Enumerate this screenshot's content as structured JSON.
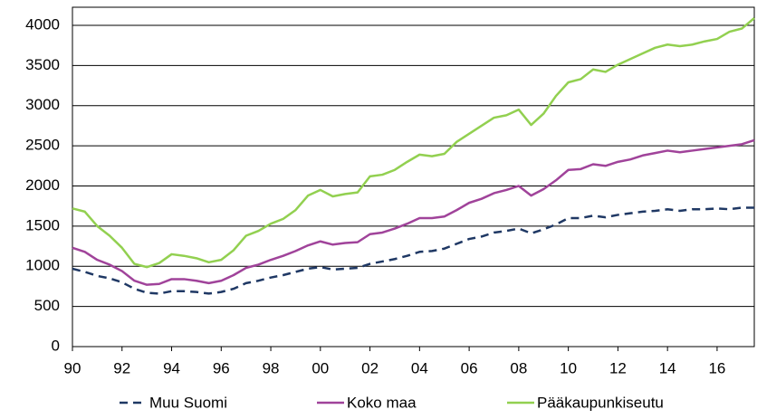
{
  "chart_data": {
    "type": "line",
    "x": [
      1990,
      1990.5,
      1991,
      1991.5,
      1992,
      1992.5,
      1993,
      1993.5,
      1994,
      1994.5,
      1995,
      1995.5,
      1996,
      1996.5,
      1997,
      1997.5,
      1998,
      1998.5,
      1999,
      1999.5,
      2000,
      2000.5,
      2001,
      2001.5,
      2002,
      2002.5,
      2003,
      2003.5,
      2004,
      2004.5,
      2005,
      2005.5,
      2006,
      2006.5,
      2007,
      2007.5,
      2008,
      2008.5,
      2009,
      2009.5,
      2010,
      2010.5,
      2011,
      2011.5,
      2012,
      2012.5,
      2013,
      2013.5,
      2014,
      2014.5,
      2015,
      2015.5,
      2016,
      2016.5,
      2017,
      2017.5
    ],
    "series": [
      {
        "name": "Muu Suomi",
        "color": "#1f3864",
        "line_style": "dashed",
        "values": [
          970,
          930,
          880,
          850,
          800,
          720,
          670,
          660,
          690,
          690,
          680,
          660,
          680,
          720,
          790,
          820,
          860,
          890,
          930,
          970,
          990,
          960,
          970,
          980,
          1030,
          1060,
          1090,
          1130,
          1180,
          1190,
          1220,
          1280,
          1340,
          1370,
          1420,
          1440,
          1470,
          1410,
          1460,
          1520,
          1600,
          1600,
          1630,
          1610,
          1640,
          1660,
          1680,
          1690,
          1710,
          1690,
          1710,
          1710,
          1720,
          1710,
          1730,
          1730
        ]
      },
      {
        "name": "Koko maa",
        "color": "#a0439a",
        "line_style": "solid",
        "values": [
          1230,
          1180,
          1080,
          1020,
          940,
          820,
          770,
          780,
          840,
          840,
          820,
          790,
          820,
          890,
          980,
          1020,
          1080,
          1130,
          1190,
          1260,
          1310,
          1270,
          1290,
          1300,
          1400,
          1420,
          1470,
          1530,
          1600,
          1600,
          1620,
          1700,
          1790,
          1840,
          1910,
          1950,
          2000,
          1880,
          1960,
          2070,
          2200,
          2210,
          2270,
          2250,
          2300,
          2330,
          2380,
          2410,
          2440,
          2420,
          2440,
          2460,
          2480,
          2500,
          2520,
          2570
        ]
      },
      {
        "name": "Pääkaupunkiseutu",
        "color": "#92d050",
        "line_style": "solid",
        "values": [
          1720,
          1680,
          1500,
          1380,
          1230,
          1030,
          990,
          1040,
          1150,
          1130,
          1100,
          1050,
          1080,
          1200,
          1380,
          1440,
          1530,
          1590,
          1700,
          1880,
          1950,
          1870,
          1900,
          1920,
          2120,
          2140,
          2200,
          2300,
          2390,
          2370,
          2400,
          2550,
          2650,
          2750,
          2850,
          2880,
          2950,
          2760,
          2900,
          3120,
          3290,
          3330,
          3450,
          3420,
          3510,
          3580,
          3650,
          3720,
          3760,
          3740,
          3760,
          3800,
          3830,
          3920,
          3960,
          4090
        ]
      }
    ],
    "xlim": [
      1990,
      2017.5
    ],
    "xticks": [
      {
        "value": 1990,
        "label": "90"
      },
      {
        "value": 1992,
        "label": "92"
      },
      {
        "value": 1994,
        "label": "94"
      },
      {
        "value": 1996,
        "label": "96"
      },
      {
        "value": 1998,
        "label": "98"
      },
      {
        "value": 2000,
        "label": "00"
      },
      {
        "value": 2002,
        "label": "02"
      },
      {
        "value": 2004,
        "label": "04"
      },
      {
        "value": 2006,
        "label": "06"
      },
      {
        "value": 2008,
        "label": "08"
      },
      {
        "value": 2010,
        "label": "10"
      },
      {
        "value": 2012,
        "label": "12"
      },
      {
        "value": 2014,
        "label": "14"
      },
      {
        "value": 2016,
        "label": "16"
      }
    ],
    "ylim": [
      0,
      4225
    ],
    "yticks": [
      0,
      500,
      1000,
      1500,
      2000,
      2500,
      3000,
      3500,
      4000
    ],
    "grid": true,
    "legend": "bottom"
  }
}
